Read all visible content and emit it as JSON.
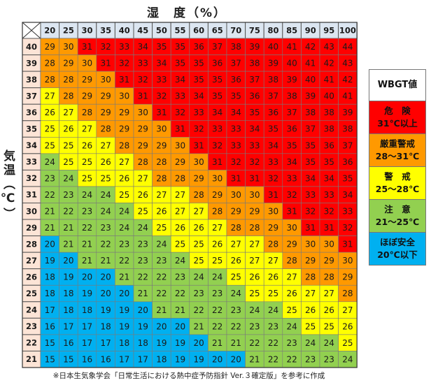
{
  "chart_data": {
    "type": "heatmap",
    "xlabel": "湿　度（%）",
    "ylabel": "気温（℃）",
    "x": [
      20,
      25,
      30,
      35,
      40,
      45,
      50,
      55,
      60,
      65,
      70,
      75,
      80,
      85,
      90,
      95,
      100
    ],
    "y": [
      40,
      39,
      38,
      37,
      36,
      35,
      34,
      33,
      32,
      31,
      30,
      29,
      28,
      27,
      26,
      25,
      24,
      23,
      22,
      21
    ],
    "values": [
      [
        29,
        30,
        31,
        32,
        33,
        34,
        35,
        35,
        36,
        37,
        38,
        39,
        40,
        41,
        42,
        43,
        44
      ],
      [
        28,
        29,
        30,
        31,
        32,
        33,
        34,
        35,
        35,
        36,
        37,
        38,
        39,
        40,
        41,
        42,
        43
      ],
      [
        28,
        28,
        29,
        30,
        31,
        32,
        33,
        34,
        35,
        35,
        36,
        37,
        38,
        39,
        40,
        41,
        42
      ],
      [
        27,
        28,
        29,
        29,
        30,
        31,
        32,
        33,
        34,
        35,
        35,
        36,
        37,
        38,
        39,
        40,
        41
      ],
      [
        26,
        27,
        28,
        29,
        29,
        30,
        31,
        32,
        33,
        34,
        34,
        35,
        36,
        37,
        38,
        38,
        39
      ],
      [
        25,
        26,
        27,
        28,
        29,
        29,
        30,
        31,
        32,
        33,
        33,
        34,
        35,
        36,
        37,
        38,
        38
      ],
      [
        25,
        25,
        26,
        27,
        28,
        29,
        29,
        30,
        31,
        32,
        33,
        33,
        34,
        35,
        35,
        36,
        37
      ],
      [
        24,
        25,
        25,
        26,
        27,
        28,
        28,
        29,
        30,
        31,
        32,
        32,
        33,
        34,
        35,
        35,
        36
      ],
      [
        23,
        24,
        25,
        25,
        26,
        27,
        28,
        28,
        29,
        30,
        31,
        31,
        32,
        33,
        34,
        34,
        35
      ],
      [
        22,
        23,
        24,
        24,
        25,
        26,
        27,
        27,
        28,
        29,
        30,
        30,
        31,
        32,
        33,
        33,
        34
      ],
      [
        21,
        22,
        23,
        24,
        24,
        25,
        26,
        27,
        27,
        28,
        29,
        29,
        30,
        31,
        32,
        32,
        33
      ],
      [
        21,
        21,
        22,
        23,
        24,
        24,
        25,
        26,
        26,
        27,
        28,
        28,
        29,
        30,
        31,
        31,
        32
      ],
      [
        20,
        21,
        21,
        22,
        23,
        23,
        24,
        25,
        25,
        26,
        27,
        27,
        28,
        29,
        30,
        30,
        31
      ],
      [
        19,
        20,
        21,
        21,
        22,
        23,
        23,
        24,
        25,
        25,
        26,
        27,
        27,
        28,
        29,
        29,
        30
      ],
      [
        18,
        19,
        20,
        20,
        21,
        22,
        22,
        23,
        24,
        24,
        25,
        26,
        26,
        27,
        28,
        28,
        29
      ],
      [
        18,
        18,
        19,
        20,
        20,
        21,
        22,
        22,
        23,
        23,
        24,
        25,
        25,
        26,
        27,
        27,
        28
      ],
      [
        17,
        18,
        18,
        19,
        19,
        20,
        21,
        21,
        22,
        22,
        23,
        24,
        24,
        25,
        26,
        26,
        27
      ],
      [
        16,
        17,
        17,
        18,
        19,
        19,
        20,
        20,
        21,
        22,
        22,
        23,
        23,
        24,
        25,
        25,
        26
      ],
      [
        15,
        16,
        17,
        17,
        18,
        18,
        19,
        19,
        20,
        21,
        21,
        22,
        22,
        23,
        24,
        24,
        25
      ],
      [
        15,
        15,
        16,
        16,
        17,
        17,
        18,
        19,
        19,
        20,
        20,
        21,
        22,
        22,
        23,
        23,
        24
      ]
    ],
    "levels": [
      {
        "min": 31,
        "color": "#ff0000"
      },
      {
        "min": 28,
        "color": "#ff9900"
      },
      {
        "min": 25,
        "color": "#ffff00"
      },
      {
        "min": 21,
        "color": "#92d050"
      },
      {
        "min": 0,
        "color": "#00b0f0"
      }
    ],
    "header_color": "#dce6f1",
    "row_header_color": "#fce4d6",
    "legend": {
      "title": "WBGT値",
      "items": [
        {
          "line1": "危　険",
          "line2": "31℃以上",
          "color": "#ff0000"
        },
        {
          "line1": "厳重警戒",
          "line2": "28～31℃",
          "color": "#ff9900"
        },
        {
          "line1": "警　戒",
          "line2": "25～28℃",
          "color": "#ffff00"
        },
        {
          "line1": "注　意",
          "line2": "21～25℃",
          "color": "#92d050"
        },
        {
          "line1": "ほぼ安全",
          "line2": "20℃以下",
          "color": "#00b0f0"
        }
      ]
    },
    "footnote": "※日本生気象学会「日常生活における熱中症予防指針 Ver.３確定版」を参考に作成"
  }
}
